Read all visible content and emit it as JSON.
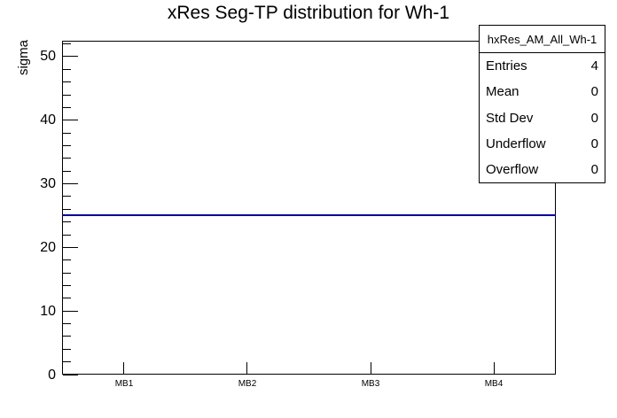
{
  "title": "xRes Seg-TP distribution for Wh-1",
  "y_axis": {
    "label": "sigma",
    "tick_labels": [
      "0",
      "10",
      "20",
      "30",
      "40",
      "50"
    ]
  },
  "x_axis": {
    "tick_labels": [
      "MB1",
      "MB2",
      "MB3",
      "MB4"
    ]
  },
  "stats_box": {
    "title": "hxRes_AM_All_Wh-1",
    "rows": [
      {
        "label": "Entries",
        "value": "4"
      },
      {
        "label": "Mean",
        "value": "0"
      },
      {
        "label": "Std Dev",
        "value": "0"
      },
      {
        "label": "Underflow",
        "value": "0"
      },
      {
        "label": "Overflow",
        "value": "0"
      }
    ]
  },
  "colors": {
    "line": "#000099",
    "axis": "#000000",
    "background": "#ffffff"
  },
  "chart_data": {
    "type": "line",
    "categories": [
      "MB1",
      "MB2",
      "MB3",
      "MB4"
    ],
    "values": [
      25,
      25,
      25,
      25
    ],
    "title": "xRes Seg-TP distribution for Wh-1",
    "xlabel": "",
    "ylabel": "sigma",
    "ylim": [
      0,
      52.5
    ],
    "ytick_major": [
      0,
      10,
      20,
      30,
      40,
      50
    ],
    "ytick_minor_step": 2,
    "grid": false,
    "legend_position": "top-right",
    "histogram_name": "hxRes_AM_All_Wh-1",
    "entries": 4,
    "mean": 0,
    "std_dev": 0,
    "underflow": 0,
    "overflow": 0
  }
}
